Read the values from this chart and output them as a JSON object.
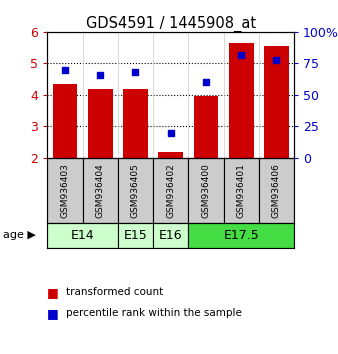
{
  "title": "GDS4591 / 1445908_at",
  "samples": [
    "GSM936403",
    "GSM936404",
    "GSM936405",
    "GSM936402",
    "GSM936400",
    "GSM936401",
    "GSM936406"
  ],
  "transformed_count": [
    4.35,
    4.2,
    4.2,
    2.2,
    3.97,
    5.65,
    5.55
  ],
  "percentile_rank": [
    70,
    66,
    68,
    20,
    60,
    82,
    78
  ],
  "ylim": [
    2,
    6
  ],
  "yticks": [
    2,
    3,
    4,
    5,
    6
  ],
  "bar_color": "#cc0000",
  "dot_color": "#0000cc",
  "age_groups": [
    {
      "label": "E14",
      "start": 0,
      "end": 2,
      "color": "#ccffcc"
    },
    {
      "label": "E15",
      "start": 2,
      "end": 3,
      "color": "#ccffcc"
    },
    {
      "label": "E16",
      "start": 3,
      "end": 4,
      "color": "#ccffcc"
    },
    {
      "label": "E17.5",
      "start": 4,
      "end": 7,
      "color": "#44dd44"
    }
  ],
  "right_yticks": [
    0,
    25,
    50,
    75,
    100
  ],
  "right_ylabels": [
    "0",
    "25",
    "50",
    "75",
    "100%"
  ],
  "sample_box_color": "#cccccc",
  "background_color": "#ffffff"
}
